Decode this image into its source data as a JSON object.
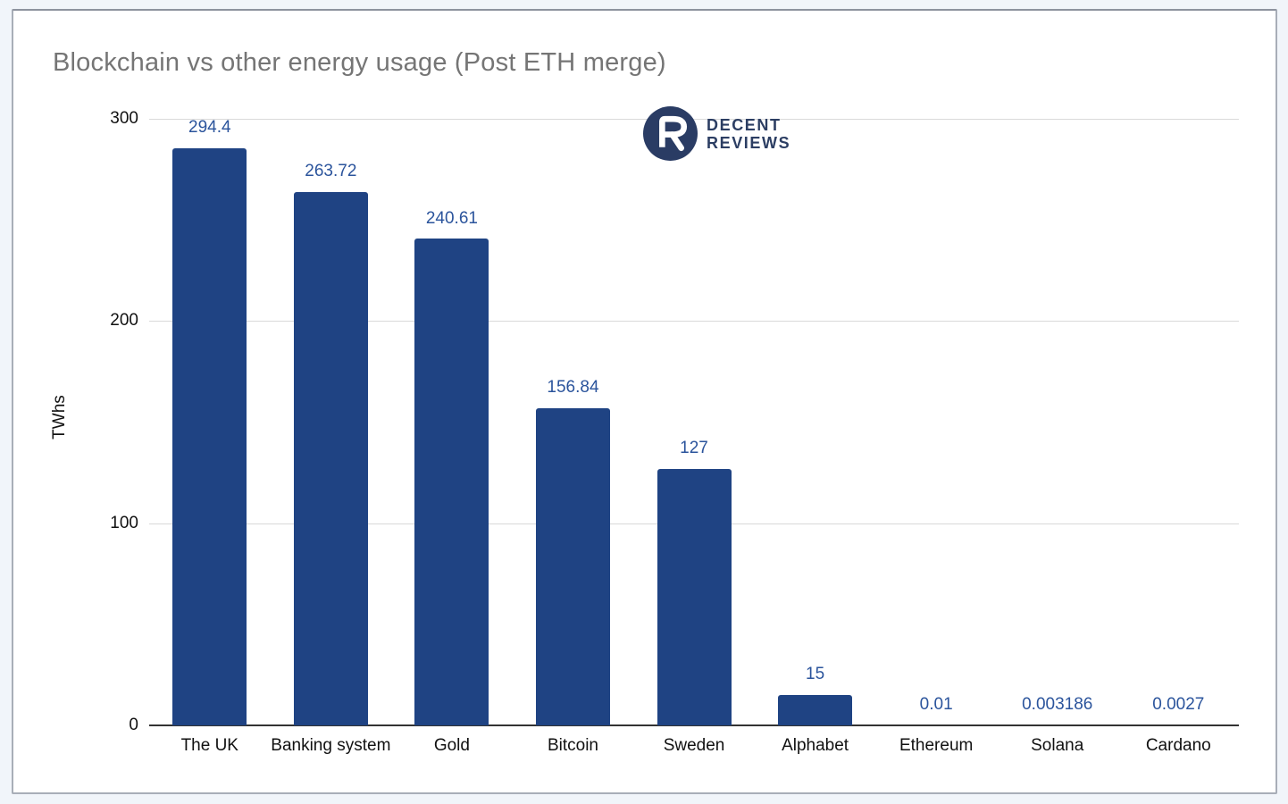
{
  "chart_data": {
    "type": "bar",
    "title": "Blockchain vs other energy usage (Post ETH merge)",
    "categories": [
      "The UK",
      "Banking system",
      "Gold",
      "Bitcoin",
      "Sweden",
      "Alphabet",
      "Ethereum",
      "Solana",
      "Cardano"
    ],
    "values": [
      294.4,
      263.72,
      240.61,
      156.84,
      127,
      15,
      0.01,
      0.003186,
      0.0027
    ],
    "value_labels": [
      "294.4",
      "263.72",
      "240.61",
      "156.84",
      "127",
      "15",
      "0.01",
      "0.003186",
      "0.0027"
    ],
    "xlabel": "",
    "ylabel": "TWhs",
    "ylim": [
      0,
      300
    ],
    "yticks": [
      0,
      100,
      200,
      300
    ],
    "grid": true,
    "legend_position": "none",
    "bar_color": "#1f4383",
    "value_label_color": "#2b549c",
    "title_color": "#757575",
    "gridline_color": "#d9d9d9",
    "axis_line_color": "#333333"
  },
  "logo": {
    "name": "Decent Reviews",
    "line1": "DECENT",
    "line2": "REVIEWS",
    "text_color": "#2c3e63",
    "circle_color": "#2a3c64"
  }
}
